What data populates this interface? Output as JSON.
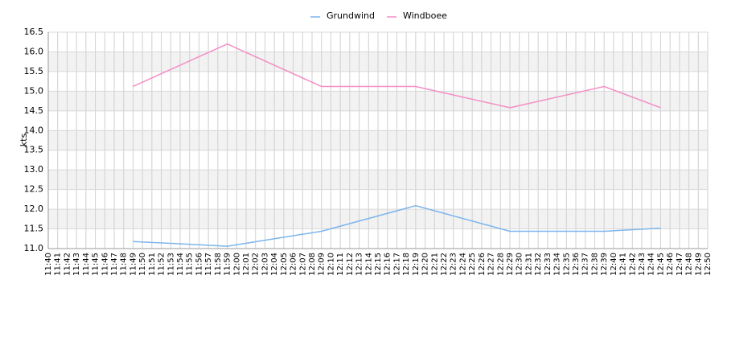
{
  "chart_data": {
    "type": "line",
    "y_label": "kts",
    "categories": [
      "11:40",
      "11:41",
      "11:42",
      "11:43",
      "11:44",
      "11:45",
      "11:46",
      "11:47",
      "11:48",
      "11:49",
      "11:50",
      "11:51",
      "11:52",
      "11:53",
      "11:54",
      "11:55",
      "11:56",
      "11:57",
      "11:58",
      "11:59",
      "12:00",
      "12:01",
      "12:02",
      "12:03",
      "12:04",
      "12:05",
      "12:06",
      "12:07",
      "12:08",
      "12:09",
      "12:10",
      "12:11",
      "12:12",
      "12:13",
      "12:14",
      "12:15",
      "12:16",
      "12:17",
      "12:18",
      "12:19",
      "12:20",
      "12:21",
      "12:22",
      "12:23",
      "12:24",
      "12:25",
      "12:26",
      "12:27",
      "12:28",
      "12:29",
      "12:30",
      "12:31",
      "12:32",
      "12:33",
      "12:34",
      "12:35",
      "12:36",
      "12:37",
      "12:38",
      "12:39",
      "12:40",
      "12:41",
      "12:42",
      "12:43",
      "12:44",
      "12:45",
      "12:46",
      "12:47",
      "12:48",
      "12:49",
      "12:50"
    ],
    "series": [
      {
        "name": "Grundwind",
        "color": "#7cb5ec",
        "x": [
          "11:49",
          "11:59",
          "12:09",
          "12:19",
          "12:29",
          "12:39",
          "12:45"
        ],
        "values": [
          11.18,
          11.06,
          11.44,
          12.09,
          11.44,
          11.44,
          11.52
        ]
      },
      {
        "name": "Windboee",
        "color": "#f48fc4",
        "x": [
          "11:49",
          "11:59",
          "12:09",
          "12:19",
          "12:29",
          "12:39",
          "12:45"
        ],
        "values": [
          15.12,
          16.2,
          15.12,
          15.12,
          14.58,
          15.12,
          14.58
        ]
      }
    ],
    "ylim": [
      11.0,
      16.5
    ],
    "yticks": [
      {
        "value": 11,
        "label": "11.0"
      },
      {
        "value": 11.5,
        "label": "11.5"
      },
      {
        "value": 12,
        "label": "12.0"
      },
      {
        "value": 12.5,
        "label": "12.5"
      },
      {
        "value": 13,
        "label": "13.0"
      },
      {
        "value": 13.5,
        "label": "13.5"
      },
      {
        "value": 14,
        "label": "14.0"
      },
      {
        "value": 14.5,
        "label": "14.5"
      },
      {
        "value": 15,
        "label": "15.0"
      },
      {
        "value": 15.5,
        "label": "15.5"
      },
      {
        "value": 16,
        "label": "16.0"
      },
      {
        "value": 16.5,
        "label": "16.5"
      }
    ],
    "grid": true,
    "legend": "top"
  }
}
